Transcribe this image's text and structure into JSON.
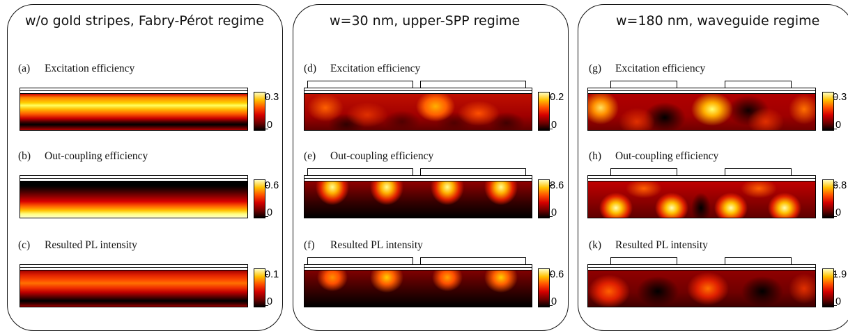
{
  "panels": [
    {
      "title": "w/o gold stripes, Fabry-Pérot regime",
      "plots": [
        {
          "tag": "(a)",
          "label": "Excitation efficiency",
          "cmax": "0.3",
          "cmin": "0"
        },
        {
          "tag": "(b)",
          "label": "Out-coupling efficiency",
          "cmax": "0.6",
          "cmin": "0"
        },
        {
          "tag": "(c)",
          "label": "Resulted PL intensity",
          "cmax": "0.1",
          "cmin": "0"
        }
      ]
    },
    {
      "title": "w=30 nm, upper-SPP regime",
      "plots": [
        {
          "tag": "(d)",
          "label": "Excitation efficiency",
          "cmax": "0.2",
          "cmin": "0"
        },
        {
          "tag": "(e)",
          "label": "Out-coupling efficiency",
          "cmax": "8.6",
          "cmin": "0"
        },
        {
          "tag": "(f)",
          "label": "Resulted PL intensity",
          "cmax": "0.6",
          "cmin": "0"
        }
      ]
    },
    {
      "title": "w=180 nm, waveguide regime",
      "plots": [
        {
          "tag": "(g)",
          "label": "Excitation efficiency",
          "cmax": "0.3",
          "cmin": "0"
        },
        {
          "tag": "(h)",
          "label": "Out-coupling efficiency",
          "cmax": "6.8",
          "cmin": "0"
        },
        {
          "tag": "(k)",
          "label": "Resulted PL intensity",
          "cmax": "1.9",
          "cmin": "0"
        }
      ]
    }
  ],
  "colormap": "hot"
}
